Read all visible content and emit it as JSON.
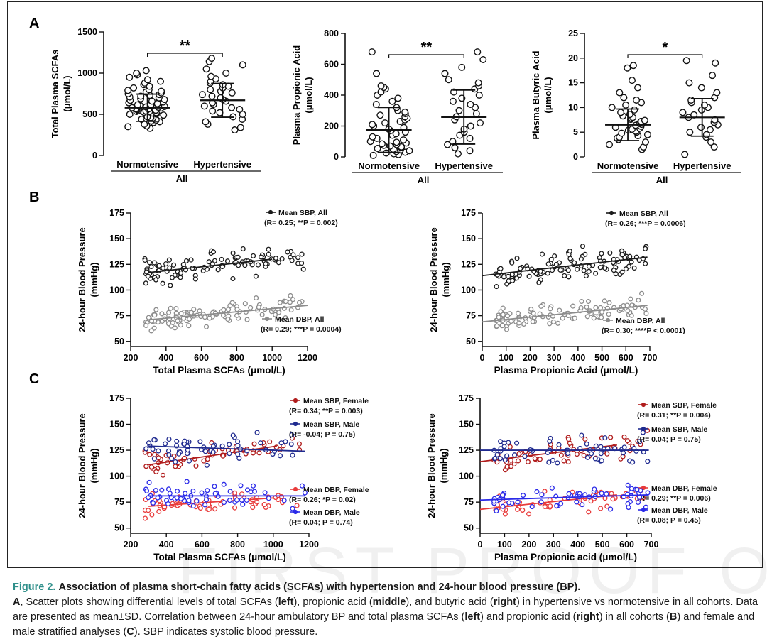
{
  "panels": {
    "A": "A",
    "B": "B",
    "C": "C"
  },
  "watermark": "FIRST PROOF ONLY",
  "caption": {
    "label": "Figure 2.",
    "title": "Association of plasma short-chain fatty acids (SCFAs) with hypertension and 24-hour blood pressure (BP).",
    "body": [
      {
        "t": "A",
        "b": true
      },
      {
        "t": ", Scatter plots showing differential levels of total SCFAs ("
      },
      {
        "t": "left",
        "b": true
      },
      {
        "t": "), propionic acid ("
      },
      {
        "t": "middle",
        "b": true
      },
      {
        "t": "), and butyric acid ("
      },
      {
        "t": "right",
        "b": true
      },
      {
        "t": ") in hypertensive vs normotensive in all cohorts. Data are presented as mean±SD. Correlation between 24-hour ambulatory BP and total plasma SCFAs ("
      },
      {
        "t": "left",
        "b": true
      },
      {
        "t": ") and propionic acid ("
      },
      {
        "t": "right",
        "b": true
      },
      {
        "t": ") in all cohorts ("
      },
      {
        "t": "B",
        "b": true
      },
      {
        "t": ") and female and male stratified analyses ("
      },
      {
        "t": "C",
        "b": true
      },
      {
        "t": "). SBP indicates systolic blood pressure."
      }
    ]
  },
  "colors": {
    "black": "#1a1a1a",
    "gray": "#8c8c8c",
    "dark_red": "#b01c1c",
    "dark_blue": "#1f2a8f",
    "red": "#e83a3a",
    "blue": "#2a2ae8"
  },
  "chart_data": [
    {
      "id": "A-left",
      "type": "scatter",
      "ylabel": [
        "Total Plasma SCFAs",
        "(μmol/L)"
      ],
      "ylim": [
        0,
        1500
      ],
      "yticks": [
        0,
        500,
        1000,
        1500
      ],
      "groups": [
        "Normotensive",
        "Hypertensive"
      ],
      "group_label": "All",
      "mean": [
        580,
        670
      ],
      "sd": [
        165,
        205
      ],
      "significance": "**",
      "series": [
        {
          "group": "Normotensive",
          "values": [
            330,
            350,
            360,
            380,
            400,
            410,
            420,
            430,
            440,
            450,
            455,
            460,
            470,
            480,
            490,
            500,
            505,
            510,
            515,
            520,
            525,
            530,
            535,
            540,
            545,
            550,
            555,
            560,
            565,
            570,
            575,
            580,
            585,
            590,
            595,
            600,
            605,
            610,
            615,
            620,
            630,
            640,
            650,
            660,
            670,
            680,
            690,
            700,
            710,
            720,
            730,
            740,
            750,
            760,
            770,
            780,
            790,
            800,
            820,
            840,
            860,
            880,
            900,
            920,
            950,
            980,
            1000,
            1030
          ]
        },
        {
          "group": "Hypertensive",
          "values": [
            310,
            340,
            380,
            410,
            440,
            470,
            500,
            520,
            540,
            560,
            580,
            600,
            620,
            640,
            660,
            680,
            700,
            720,
            740,
            760,
            780,
            800,
            820,
            840,
            860,
            880,
            900,
            930,
            960,
            1000,
            1050,
            1100,
            1140,
            1180
          ]
        }
      ]
    },
    {
      "id": "A-middle",
      "type": "scatter",
      "ylabel": [
        "Plasma Propionic Acid",
        "(μmol/L)"
      ],
      "ylim": [
        0,
        800
      ],
      "yticks": [
        0,
        200,
        400,
        600,
        800
      ],
      "groups": [
        "Normotensive",
        "Hypertensive"
      ],
      "group_label": "All",
      "mean": [
        175,
        258
      ],
      "sd": [
        145,
        175
      ],
      "significance": "**",
      "series": [
        {
          "group": "Normotensive",
          "values": [
            10,
            15,
            20,
            25,
            30,
            35,
            40,
            45,
            50,
            55,
            60,
            65,
            70,
            75,
            80,
            85,
            90,
            95,
            100,
            110,
            120,
            130,
            140,
            150,
            160,
            170,
            180,
            190,
            200,
            210,
            220,
            230,
            240,
            250,
            260,
            270,
            280,
            290,
            300,
            320,
            340,
            360,
            380,
            400,
            420,
            440,
            450,
            460,
            540,
            680
          ]
        },
        {
          "group": "Hypertensive",
          "values": [
            20,
            40,
            60,
            80,
            100,
            120,
            140,
            160,
            180,
            200,
            220,
            240,
            260,
            280,
            300,
            320,
            340,
            360,
            380,
            400,
            420,
            440,
            460,
            480,
            500,
            540,
            580,
            630,
            680
          ]
        }
      ]
    },
    {
      "id": "A-right",
      "type": "scatter",
      "ylabel": [
        "Plasma Butyric Acid",
        "(μmol/L)"
      ],
      "ylim": [
        0,
        25
      ],
      "yticks": [
        0,
        5,
        10,
        15,
        20,
        25
      ],
      "groups": [
        "Normotensive",
        "Hypertensive"
      ],
      "group_label": "All",
      "mean": [
        6.5,
        8.0
      ],
      "sd": [
        3.2,
        3.8
      ],
      "significance": "*",
      "series": [
        {
          "group": "Normotensive",
          "values": [
            1.5,
            2.0,
            2.5,
            3.0,
            3.5,
            3.8,
            4.0,
            4.3,
            4.5,
            4.8,
            5.0,
            5.2,
            5.4,
            5.6,
            5.8,
            6.0,
            6.2,
            6.4,
            6.6,
            6.8,
            7.0,
            7.2,
            7.4,
            7.6,
            7.8,
            8.0,
            8.3,
            8.6,
            9.0,
            9.5,
            10.0,
            10.5,
            11.0,
            11.5,
            12.0,
            13.0,
            14.0,
            15.5,
            18.0,
            18.5
          ]
        },
        {
          "group": "Hypertensive",
          "values": [
            0.5,
            2.0,
            3.0,
            4.0,
            4.5,
            5.0,
            5.5,
            6.0,
            6.5,
            7.0,
            7.5,
            8.0,
            8.5,
            9.0,
            9.5,
            10.0,
            10.5,
            11.0,
            11.5,
            12.0,
            13.0,
            14.0,
            15.0,
            16.5,
            19.0,
            19.5
          ]
        }
      ]
    },
    {
      "id": "B-left",
      "type": "scatter",
      "xlabel": "Total Plasma SCFAs (μmol/L)",
      "ylabel": [
        "24-hour Blood Pressure",
        "(mmHg)"
      ],
      "xlim": [
        200,
        1200
      ],
      "xticks": [
        200,
        400,
        600,
        800,
        1000,
        1200
      ],
      "ylim": [
        45,
        175
      ],
      "yticks": [
        50,
        75,
        100,
        125,
        150,
        175
      ],
      "series": [
        {
          "name": "Mean SBP, All",
          "stat": "(R= 0.25; **P = 0.002)",
          "color": "black",
          "fit": [
            [
              300,
              117
            ],
            [
              1000,
              130
            ]
          ]
        },
        {
          "name": "Mean DBP, All",
          "stat": "(R= 0.29; ***P = 0.0004)",
          "color": "gray",
          "fit": [
            [
              300,
              71
            ],
            [
              1200,
              85
            ]
          ]
        }
      ]
    },
    {
      "id": "B-right",
      "type": "scatter",
      "xlabel": "Plasma Propionic Acid (μmol/L)",
      "ylabel": [
        "24-hour Blood Pressure",
        "(mmHg)"
      ],
      "xlim": [
        0,
        700
      ],
      "xticks": [
        0,
        100,
        200,
        300,
        400,
        500,
        600,
        700
      ],
      "ylim": [
        45,
        175
      ],
      "yticks": [
        50,
        75,
        100,
        125,
        150,
        175
      ],
      "series": [
        {
          "name": "Mean SBP, All",
          "stat": "(R= 0.26; ***P = 0.0006)",
          "color": "black",
          "fit": [
            [
              0,
              114
            ],
            [
              690,
              132
            ]
          ]
        },
        {
          "name": "Mean DBP, All",
          "stat": "(R= 0.30; ****P < 0.0001)",
          "color": "gray",
          "fit": [
            [
              0,
              69
            ],
            [
              690,
              85
            ]
          ]
        }
      ]
    },
    {
      "id": "C-left",
      "type": "scatter",
      "xlabel": "Total Plasma SCFAs (μmol/L)",
      "ylabel": [
        "24-hour Blood Pressure",
        "(mmHg)"
      ],
      "xlim": [
        200,
        1200
      ],
      "xticks": [
        200,
        400,
        600,
        800,
        1000,
        1200
      ],
      "ylim": [
        45,
        175
      ],
      "yticks": [
        50,
        75,
        100,
        125,
        150,
        175
      ],
      "series": [
        {
          "name": "Mean SBP, Female",
          "stat": "(R= 0.34; **P = 0.003)",
          "color": "dark_red",
          "fit": [
            [
              300,
              111
            ],
            [
              1020,
              129
            ]
          ]
        },
        {
          "name": "Mean SBP, Male",
          "stat": "(R= -0.04; P = 0.75)",
          "color": "dark_blue",
          "fit": [
            [
              300,
              129
            ],
            [
              1180,
              124
            ]
          ]
        },
        {
          "name": "Mean DBP, Female",
          "stat": "(R= 0.26; *P = 0.02)",
          "color": "red",
          "fit": [
            [
              300,
              71
            ],
            [
              1000,
              79
            ]
          ]
        },
        {
          "name": "Mean DBP, Male",
          "stat": "(R= 0.04; P = 0.74)",
          "color": "blue",
          "fit": [
            [
              300,
              81
            ],
            [
              1180,
              81
            ]
          ]
        }
      ]
    },
    {
      "id": "C-right",
      "type": "scatter",
      "xlabel": "Plasma Propionic acid (μmol/L)",
      "ylabel": [
        "24-hour Blood Pressure",
        "(mmHg)"
      ],
      "xlim": [
        0,
        700
      ],
      "xticks": [
        0,
        100,
        200,
        300,
        400,
        500,
        600,
        700
      ],
      "ylim": [
        45,
        175
      ],
      "yticks": [
        50,
        75,
        100,
        125,
        150,
        175
      ],
      "series": [
        {
          "name": "Mean SBP, Female",
          "stat": "(R= 0.31; **P = 0.004)",
          "color": "dark_red",
          "fit": [
            [
              0,
              114
            ],
            [
              560,
              130
            ]
          ]
        },
        {
          "name": "Mean SBP, Male",
          "stat": "(R= 0.04; P = 0.75)",
          "color": "dark_blue",
          "fit": [
            [
              0,
              125
            ],
            [
              690,
              125
            ]
          ]
        },
        {
          "name": "Mean DBP, Female",
          "stat": "(R= 0.29; **P = 0.006)",
          "color": "red",
          "fit": [
            [
              0,
              68
            ],
            [
              560,
              82
            ]
          ]
        },
        {
          "name": "Mean DBP, Male",
          "stat": "(R= 0.08; P = 0.45)",
          "color": "blue",
          "fit": [
            [
              0,
              77
            ],
            [
              690,
              82
            ]
          ]
        }
      ]
    }
  ]
}
